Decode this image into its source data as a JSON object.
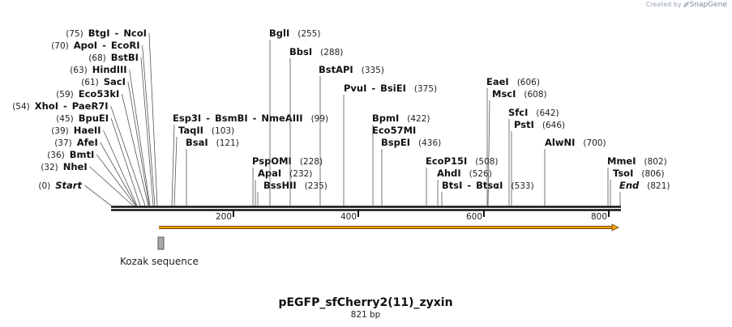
{
  "credit": {
    "prefix": "Created by",
    "brand": "SnapGene"
  },
  "map": {
    "title": "pEGFP_sfCherry2(11)_zyxin",
    "length_label": "821 bp",
    "total_bp": 821,
    "ticks": [
      "200",
      "400",
      "600",
      "800"
    ],
    "feature": {
      "name": "Kozak sequence",
      "arrow_color": "#f5a30a"
    },
    "sites": [
      {
        "names": [
          "Start"
        ],
        "pos": "(0)",
        "italic": true
      },
      {
        "names": [
          "NheI"
        ],
        "pos": "(32)"
      },
      {
        "names": [
          "BmtI"
        ],
        "pos": "(36)"
      },
      {
        "names": [
          "AfeI"
        ],
        "pos": "(37)"
      },
      {
        "names": [
          "HaeII"
        ],
        "pos": "(39)"
      },
      {
        "names": [
          "BpuEI"
        ],
        "pos": "(45)"
      },
      {
        "names": [
          "XhoI",
          "PaeR7I"
        ],
        "pos": "(54)"
      },
      {
        "names": [
          "Eco53kI"
        ],
        "pos": "(59)"
      },
      {
        "names": [
          "SacI"
        ],
        "pos": "(61)"
      },
      {
        "names": [
          "HindIII"
        ],
        "pos": "(63)"
      },
      {
        "names": [
          "BstBI"
        ],
        "pos": "(68)"
      },
      {
        "names": [
          "ApoI",
          "EcoRI"
        ],
        "pos": "(70)"
      },
      {
        "names": [
          "BtgI",
          "NcoI"
        ],
        "pos": "(75)"
      },
      {
        "names": [
          "Esp3I",
          "BsmBI",
          "NmeAIII"
        ],
        "pos": "(99)"
      },
      {
        "names": [
          "TaqII"
        ],
        "pos": "(103)"
      },
      {
        "names": [
          "BsaI"
        ],
        "pos": "(121)"
      },
      {
        "names": [
          "PspOMI"
        ],
        "pos": "(228)"
      },
      {
        "names": [
          "ApaI"
        ],
        "pos": "(232)"
      },
      {
        "names": [
          "BssHII"
        ],
        "pos": "(235)"
      },
      {
        "names": [
          "BglI"
        ],
        "pos": "(255)"
      },
      {
        "names": [
          "BbsI"
        ],
        "pos": "(288)"
      },
      {
        "names": [
          "BstAPI"
        ],
        "pos": "(335)"
      },
      {
        "names": [
          "PvuI",
          "BsiEI"
        ],
        "pos": "(375)"
      },
      {
        "names": [
          "BpmI"
        ],
        "pos": "(422)"
      },
      {
        "names": [
          "Eco57MI"
        ],
        "pos": ""
      },
      {
        "names": [
          "BspEI"
        ],
        "pos": "(436)"
      },
      {
        "names": [
          "EcoP15I"
        ],
        "pos": "(508)"
      },
      {
        "names": [
          "AhdI"
        ],
        "pos": "(526)"
      },
      {
        "names": [
          "BtsI",
          "BtsαI"
        ],
        "pos": "(533)"
      },
      {
        "names": [
          "EaeI"
        ],
        "pos": "(606)"
      },
      {
        "names": [
          "MscI"
        ],
        "pos": "(608)"
      },
      {
        "names": [
          "SfcI"
        ],
        "pos": "(642)"
      },
      {
        "names": [
          "PstI"
        ],
        "pos": "(646)"
      },
      {
        "names": [
          "AlwNI"
        ],
        "pos": "(700)"
      },
      {
        "names": [
          "MmeI"
        ],
        "pos": "(802)"
      },
      {
        "names": [
          "TsoI"
        ],
        "pos": "(806)"
      },
      {
        "names": [
          "End"
        ],
        "pos": "(821)",
        "italic": true
      }
    ]
  }
}
